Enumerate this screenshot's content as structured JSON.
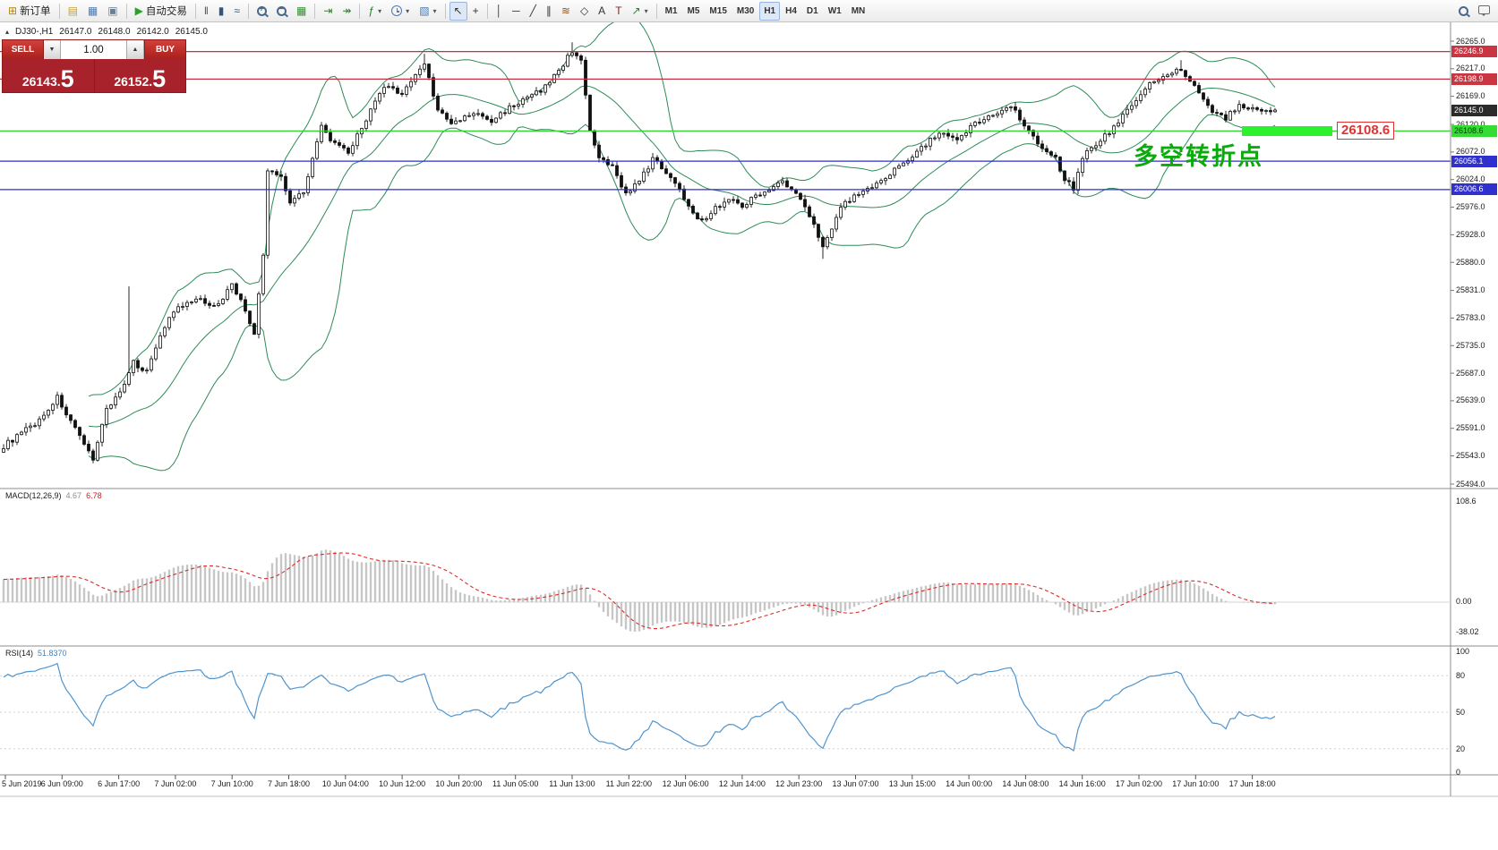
{
  "header": {
    "collapse_glyph": "▴",
    "symbol_period": "DJ30-,H1",
    "open": "26147.0",
    "high": "26148.0",
    "low": "26142.0",
    "close": "26145.0"
  },
  "order_panel": {
    "sell_label": "SELL",
    "buy_label": "BUY",
    "volume": "1.00",
    "spin_down": "▼",
    "spin_up": "▲",
    "sell_price_main": "26143.",
    "sell_price_big": "5",
    "buy_price_main": "26152.",
    "buy_price_big": "5"
  },
  "annotation": {
    "text": "多空转折点",
    "color": "#0caa0c"
  },
  "price_tag": {
    "text": "26108.6"
  },
  "colors": {
    "bollinger": "#2E8B57",
    "candle_up": "#ffffff",
    "candle_down": "#111111",
    "macd_hist": "#c6c6c6",
    "macd_signal": "#dd2a2a",
    "rsi_line": "#4f94cd",
    "line_red": "#c33040",
    "line_blue": "#2f2fd0",
    "line_green": "#2fd42f"
  },
  "toolbar": {
    "groups": [
      {
        "items": [
          {
            "name": "new-order-button",
            "label": "新订单",
            "glyph": "⊞",
            "color": "#b8860b",
            "icon_name": "new-order-icon"
          }
        ]
      },
      {
        "items": [
          {
            "name": "profiles-icon",
            "glyph": "▤",
            "color": "#c9a227"
          },
          {
            "name": "data-window-icon",
            "glyph": "▦",
            "color": "#4a7ab5"
          },
          {
            "name": "terminal-icon",
            "glyph": "▣",
            "color": "#6a7f95"
          }
        ]
      },
      {
        "items": [
          {
            "name": "autotrading-button",
            "label": "自动交易",
            "glyph": "▶",
            "color": "#27a327",
            "icon_name": "autotrading-play-icon"
          }
        ]
      },
      {
        "items": [
          {
            "name": "bar-chart-icon",
            "glyph": "‖",
            "color": "#335577"
          },
          {
            "name": "candlestick-chart-icon",
            "glyph": "▮",
            "color": "#335577"
          },
          {
            "name": "line-chart-icon",
            "glyph": "≈",
            "color": "#335577"
          }
        ]
      },
      {
        "items": [
          {
            "name": "zoom-in-button",
            "cls": "mag mag-plus",
            "icon_name": "zoom-in-icon"
          },
          {
            "name": "zoom-out-button",
            "cls": "mag mag-minus",
            "icon_name": "zoom-out-icon"
          },
          {
            "name": "tile-windows-icon",
            "glyph": "▦",
            "color": "#2f8f2f"
          }
        ]
      },
      {
        "items": [
          {
            "name": "auto-scroll-icon",
            "glyph": "⇥",
            "color": "#2f7f2f"
          },
          {
            "name": "chart-shift-icon",
            "glyph": "↠",
            "color": "#2f7f2f"
          }
        ]
      },
      {
        "items": [
          {
            "name": "indicators-button",
            "glyph": "ƒ",
            "color": "#1f7f1f",
            "dropdown": true,
            "icon_name": "indicators-icon"
          },
          {
            "name": "periods-button",
            "cls": "clock",
            "dropdown": true,
            "icon_name": "clock-icon"
          },
          {
            "name": "templates-button",
            "glyph": "▧",
            "color": "#4a7ab5",
            "dropdown": true,
            "icon_name": "template-icon"
          }
        ]
      },
      {
        "items": [
          {
            "name": "cursor-tool",
            "glyph": "↖",
            "color": "#333333",
            "active": true,
            "icon_name": "cursor-icon"
          },
          {
            "name": "crosshair-tool",
            "glyph": "+",
            "color": "#333333",
            "icon_name": "crosshair-icon"
          }
        ]
      },
      {
        "items": [
          {
            "name": "vertical-line-tool",
            "glyph": "│",
            "color": "#333333",
            "icon_name": "vertical-line-icon"
          },
          {
            "name": "horizontal-line-tool",
            "glyph": "─",
            "color": "#333333",
            "icon_name": "horizontal-line-icon"
          },
          {
            "name": "trendline-tool",
            "glyph": "╱",
            "color": "#333333",
            "icon_name": "trendline-icon"
          },
          {
            "name": "channel-tool",
            "glyph": "∥",
            "color": "#333333",
            "icon_name": "channel-icon"
          },
          {
            "name": "fibonacci-tool",
            "glyph": "≋",
            "color": "#8a5522",
            "icon_name": "fibonacci-icon"
          },
          {
            "name": "shapes-tool",
            "glyph": "◇",
            "color": "#333333",
            "icon_name": "shapes-icon"
          },
          {
            "name": "text-tool",
            "glyph": "A",
            "color": "#333333",
            "icon_name": "text-icon"
          },
          {
            "name": "text-label-tool",
            "glyph": "T",
            "color": "#8a2222",
            "icon_name": "text-label-icon"
          },
          {
            "name": "arrows-tool",
            "glyph": "↗",
            "color": "#2f7f2f",
            "dropdown": true,
            "icon_name": "arrows-icon"
          }
        ]
      },
      {
        "items": [
          {
            "name": "timeframe-m1",
            "label": "M1",
            "tf": true
          },
          {
            "name": "timeframe-m5",
            "label": "M5",
            "tf": true
          },
          {
            "name": "timeframe-m15",
            "label": "M15",
            "tf": true
          },
          {
            "name": "timeframe-m30",
            "label": "M30",
            "tf": true
          },
          {
            "name": "timeframe-h1",
            "label": "H1",
            "tf": true,
            "active": true
          },
          {
            "name": "timeframe-h4",
            "label": "H4",
            "tf": true
          },
          {
            "name": "timeframe-d1",
            "label": "D1",
            "tf": true
          },
          {
            "name": "timeframe-w1",
            "label": "W1",
            "tf": true
          },
          {
            "name": "timeframe-mn",
            "label": "MN",
            "tf": true
          }
        ]
      },
      {
        "right": true,
        "items": [
          {
            "name": "search-button",
            "cls": "mag",
            "icon_name": "search-icon"
          },
          {
            "name": "chat-button",
            "cls": "chat",
            "icon_name": "chat-icon"
          }
        ]
      }
    ]
  },
  "chart_data": {
    "type": "candlestick",
    "symbol": "DJ30",
    "timeframe": "H1",
    "bars": 285,
    "noise": 9,
    "current_price": 26145.0,
    "price_axis": {
      "top_price": 26265.0,
      "bottom_price": 25494.0,
      "labels": [
        "26265.0",
        "26217.0",
        "26169.0",
        "26120.0",
        "26072.0",
        "26024.0",
        "25976.0",
        "25928.0",
        "25880.0",
        "25831.0",
        "25783.0",
        "25735.0",
        "25687.0",
        "25639.0",
        "25591.0",
        "25543.0",
        "25494.0"
      ]
    },
    "badges": [
      {
        "text": "26246.9",
        "price": 26246.9,
        "bg": "#c93540",
        "fg": "#ffffff"
      },
      {
        "text": "26198.9",
        "price": 26198.9,
        "bg": "#c93540",
        "fg": "#ffffff"
      },
      {
        "text": "26145.0",
        "price": 26145.0,
        "bg": "#2b2b2b",
        "fg": "#ffffff"
      },
      {
        "text": "26108.6",
        "price": 26108.6,
        "bg": "#33dd33",
        "fg": "#083b08"
      },
      {
        "text": "26056.1",
        "price": 26056.1,
        "bg": "#3030cf",
        "fg": "#ffffff"
      },
      {
        "text": "26006.6",
        "price": 26006.6,
        "bg": "#3030cf",
        "fg": "#ffffff"
      }
    ],
    "hlines": [
      {
        "price": 26246.9,
        "color": "#c33040"
      },
      {
        "price": 26198.9,
        "color": "#c33040"
      },
      {
        "price": 26108.6,
        "color": "#2fd42f"
      },
      {
        "price": 26056.1,
        "color": "#2f2fd0"
      },
      {
        "price": 26006.6,
        "color": "#2f2fd0"
      }
    ],
    "bollinger": {
      "period": 20,
      "deviation": 2
    },
    "close_anchors": [
      [
        0,
        25560
      ],
      [
        8,
        25605
      ],
      [
        12,
        25645
      ],
      [
        18,
        25560
      ],
      [
        20,
        25540
      ],
      [
        23,
        25625
      ],
      [
        27,
        25665
      ],
      [
        29,
        25705
      ],
      [
        32,
        25690
      ],
      [
        35,
        25755
      ],
      [
        38,
        25795
      ],
      [
        43,
        25815
      ],
      [
        48,
        25805
      ],
      [
        51,
        25845
      ],
      [
        54,
        25795
      ],
      [
        56,
        25755
      ],
      [
        58,
        25890
      ],
      [
        59,
        26040
      ],
      [
        62,
        26030
      ],
      [
        64,
        25985
      ],
      [
        67,
        26005
      ],
      [
        71,
        26115
      ],
      [
        74,
        26085
      ],
      [
        77,
        26070
      ],
      [
        81,
        26130
      ],
      [
        85,
        26185
      ],
      [
        89,
        26175
      ],
      [
        92,
        26205
      ],
      [
        94,
        26228
      ],
      [
        97,
        26145
      ],
      [
        100,
        26120
      ],
      [
        105,
        26140
      ],
      [
        109,
        26125
      ],
      [
        113,
        26150
      ],
      [
        117,
        26165
      ],
      [
        121,
        26185
      ],
      [
        125,
        26225
      ],
      [
        127,
        26248
      ],
      [
        129,
        26235
      ],
      [
        131,
        26105
      ],
      [
        133,
        26060
      ],
      [
        136,
        26045
      ],
      [
        139,
        26000
      ],
      [
        142,
        26020
      ],
      [
        145,
        26060
      ],
      [
        149,
        26030
      ],
      [
        153,
        25980
      ],
      [
        156,
        25950
      ],
      [
        159,
        25975
      ],
      [
        162,
        25990
      ],
      [
        165,
        25980
      ],
      [
        170,
        26005
      ],
      [
        174,
        26020
      ],
      [
        178,
        25990
      ],
      [
        181,
        25950
      ],
      [
        183,
        25905
      ],
      [
        186,
        25960
      ],
      [
        188,
        25985
      ],
      [
        192,
        26005
      ],
      [
        197,
        26025
      ],
      [
        201,
        26055
      ],
      [
        205,
        26080
      ],
      [
        209,
        26105
      ],
      [
        213,
        26090
      ],
      [
        217,
        26125
      ],
      [
        221,
        26135
      ],
      [
        225,
        26155
      ],
      [
        228,
        26120
      ],
      [
        232,
        26080
      ],
      [
        235,
        26060
      ],
      [
        237,
        26025
      ],
      [
        239,
        26010
      ],
      [
        241,
        26065
      ],
      [
        244,
        26085
      ],
      [
        248,
        26115
      ],
      [
        252,
        26155
      ],
      [
        256,
        26190
      ],
      [
        260,
        26205
      ],
      [
        263,
        26215
      ],
      [
        266,
        26185
      ],
      [
        269,
        26150
      ],
      [
        273,
        26130
      ],
      [
        276,
        26155
      ],
      [
        281,
        26140
      ],
      [
        284,
        26145
      ]
    ],
    "wick_overrides": {
      "28": {
        "high": 25838
      },
      "94": {
        "high": 26243
      },
      "127": {
        "high": 26263
      },
      "183": {
        "low": 25886
      },
      "263": {
        "high": 26232
      }
    },
    "macd": {
      "label": "MACD(12,26,9)",
      "value1": "4.67",
      "value2": "6.78",
      "axis": [
        "108.6",
        "0.00",
        "-38.02"
      ]
    },
    "rsi": {
      "label": "RSI(14)",
      "value": "51.8370",
      "axis": [
        "100",
        "80",
        "50",
        "20",
        "0"
      ],
      "levels": [
        80,
        50,
        20
      ]
    },
    "time_labels": [
      "5 Jun 2019",
      "6 Jun 09:00",
      "6 Jun 17:00",
      "7 Jun 02:00",
      "7 Jun 10:00",
      "7 Jun 18:00",
      "10 Jun 04:00",
      "10 Jun 12:00",
      "10 Jun 20:00",
      "11 Jun 05:00",
      "11 Jun 13:00",
      "11 Jun 22:00",
      "12 Jun 06:00",
      "12 Jun 14:00",
      "12 Jun 23:00",
      "13 Jun 07:00",
      "13 Jun 15:00",
      "14 Jun 00:00",
      "14 Jun 08:00",
      "14 Jun 16:00",
      "17 Jun 02:00",
      "17 Jun 10:00",
      "17 Jun 18:00"
    ]
  }
}
